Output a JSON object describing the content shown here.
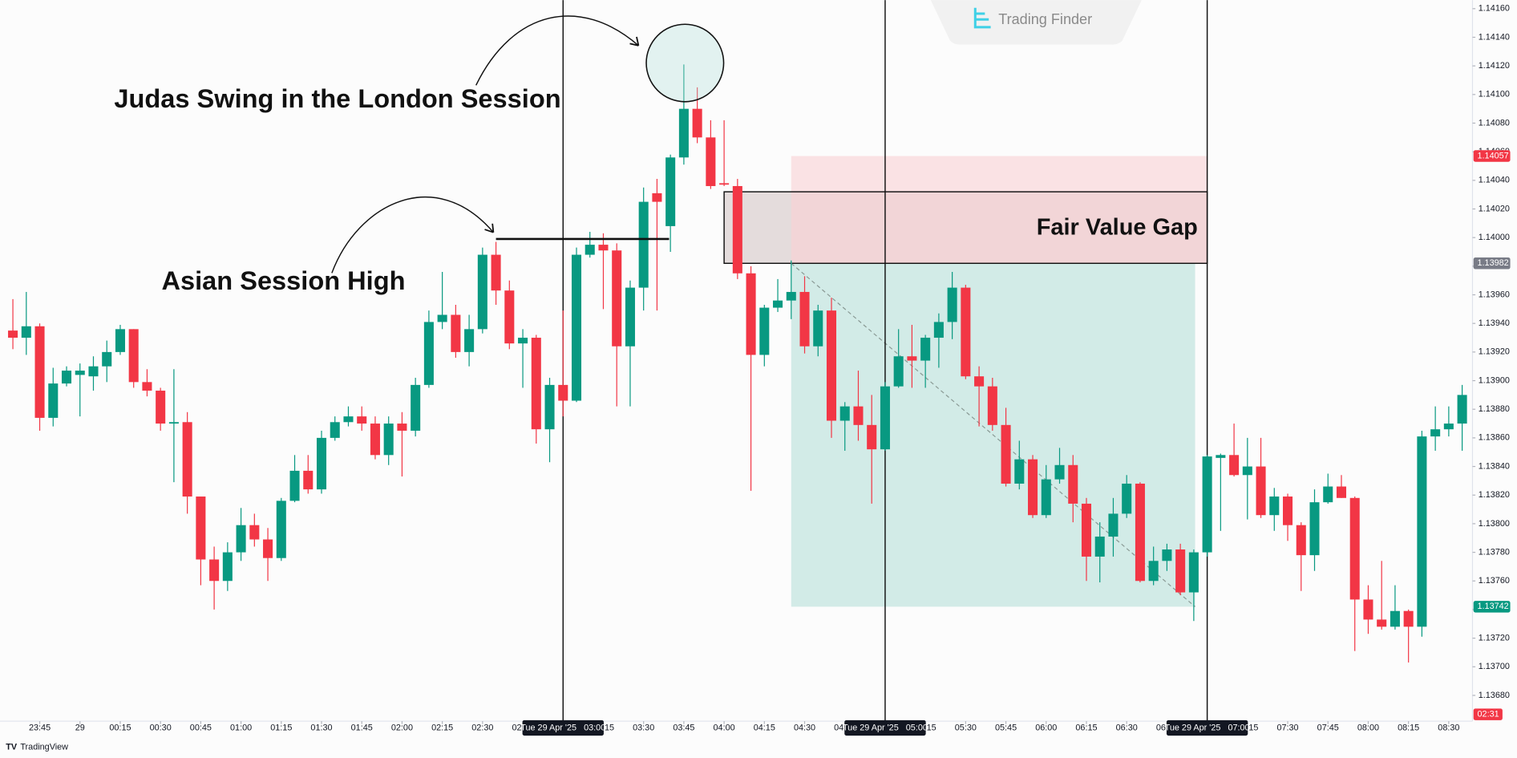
{
  "chart_data": {
    "type": "candlestick",
    "up_color": "#089981",
    "down_color": "#f23645",
    "open": [
      1.13935,
      1.1393,
      1.13938,
      1.13874,
      1.13898,
      1.13904,
      1.13903,
      1.1391,
      1.1392,
      1.13936,
      1.13899,
      1.13893,
      1.1387,
      1.13871,
      1.13819,
      1.13775,
      1.1376,
      1.1378,
      1.13799,
      1.13789,
      1.13776,
      1.13816,
      1.13837,
      1.13824,
      1.1386,
      1.13871,
      1.13875,
      1.1387,
      1.13848,
      1.1387,
      1.13865,
      1.13897,
      1.13941,
      1.13946,
      1.1392,
      1.13936,
      1.13988,
      1.13963,
      1.13926,
      1.1393,
      1.13866,
      1.13897,
      1.13886,
      1.13988,
      1.13995,
      1.13991,
      1.13924,
      1.13965,
      1.14031,
      1.14008,
      1.14056,
      1.1409,
      1.1407,
      1.14038,
      1.14036,
      1.13975,
      1.13918,
      1.13951,
      1.13956,
      1.13962,
      1.13924,
      1.13949,
      1.13872,
      1.13882,
      1.13869,
      1.13852,
      1.13896,
      1.13917,
      1.13914,
      1.1393,
      1.13941,
      1.13965,
      1.13903,
      1.13896,
      1.13869,
      1.13828,
      1.13845,
      1.13806,
      1.13831,
      1.13841,
      1.13814,
      1.13777,
      1.13791,
      1.13807,
      1.13828,
      1.1376,
      1.13774,
      1.13782,
      1.13752,
      1.1378,
      1.13846,
      1.13848,
      1.13834,
      1.1384,
      1.13806,
      1.13819,
      1.13799,
      1.13778,
      1.13815,
      1.13826,
      1.13818,
      1.13747,
      1.13733,
      1.13728,
      1.13739,
      1.13728,
      1.13861,
      1.13866,
      1.1387
    ],
    "high": [
      1.13957,
      1.13962,
      1.1394,
      1.13909,
      1.1391,
      1.13912,
      1.13917,
      1.13928,
      1.13939,
      1.13936,
      1.13908,
      1.13895,
      1.13908,
      1.13878,
      1.13819,
      1.13784,
      1.13787,
      1.13811,
      1.13807,
      1.13797,
      1.13818,
      1.13848,
      1.13848,
      1.13865,
      1.13875,
      1.13882,
      1.13882,
      1.13875,
      1.13875,
      1.13878,
      1.13902,
      1.13949,
      1.13976,
      1.13953,
      1.13946,
      1.13993,
      1.13997,
      1.1397,
      1.13936,
      1.13932,
      1.13902,
      1.13949,
      1.13993,
      1.14004,
      1.14003,
      1.13996,
      1.1397,
      1.14035,
      1.14041,
      1.14058,
      1.14121,
      1.14105,
      1.14082,
      1.14082,
      1.14041,
      1.1398,
      1.13953,
      1.13971,
      1.13984,
      1.13973,
      1.13953,
      1.13958,
      1.13885,
      1.13907,
      1.1389,
      1.13899,
      1.13936,
      1.13939,
      1.13932,
      1.13947,
      1.13976,
      1.13967,
      1.1391,
      1.13902,
      1.13881,
      1.13858,
      1.13848,
      1.13841,
      1.13853,
      1.13848,
      1.13818,
      1.13801,
      1.13818,
      1.13834,
      1.13829,
      1.13784,
      1.13786,
      1.13786,
      1.13782,
      1.13848,
      1.13849,
      1.1387,
      1.1386,
      1.1386,
      1.13825,
      1.13821,
      1.13801,
      1.13824,
      1.13835,
      1.13834,
      1.13819,
      1.13757,
      1.13774,
      1.13757,
      1.1374,
      1.13865,
      1.13882,
      1.13882,
      1.13897
    ],
    "low": [
      1.13922,
      1.13918,
      1.13865,
      1.13868,
      1.13896,
      1.13875,
      1.13893,
      1.13899,
      1.13918,
      1.13895,
      1.13889,
      1.13865,
      1.13829,
      1.13807,
      1.13757,
      1.1374,
      1.13753,
      1.13774,
      1.13784,
      1.1376,
      1.13774,
      1.13815,
      1.13821,
      1.13821,
      1.13858,
      1.13868,
      1.13865,
      1.13845,
      1.13841,
      1.13833,
      1.13861,
      1.13895,
      1.13936,
      1.13916,
      1.1391,
      1.13933,
      1.13953,
      1.13922,
      1.13895,
      1.13856,
      1.13843,
      1.13875,
      1.13885,
      1.13986,
      1.1395,
      1.13882,
      1.13882,
      1.13949,
      1.13949,
      1.1399,
      1.14051,
      1.14066,
      1.14034,
      1.14036,
      1.13971,
      1.13823,
      1.1391,
      1.13948,
      1.13943,
      1.13919,
      1.13917,
      1.1386,
      1.13851,
      1.13858,
      1.13814,
      1.13851,
      1.13895,
      1.13895,
      1.13895,
      1.13909,
      1.13929,
      1.13901,
      1.13868,
      1.13865,
      1.13826,
      1.13824,
      1.13804,
      1.13804,
      1.13828,
      1.13801,
      1.1376,
      1.13759,
      1.13777,
      1.13804,
      1.13759,
      1.13757,
      1.13767,
      1.1375,
      1.13732,
      1.13777,
      1.13795,
      1.13833,
      1.13803,
      1.13804,
      1.13795,
      1.13788,
      1.13753,
      1.13767,
      1.13814,
      1.13818,
      1.13711,
      1.13723,
      1.13726,
      1.13726,
      1.13703,
      1.13721,
      1.13851,
      1.13861,
      1.13851
    ],
    "close": [
      1.1393,
      1.13938,
      1.13874,
      1.13898,
      1.13907,
      1.13907,
      1.1391,
      1.1392,
      1.13936,
      1.13899,
      1.13893,
      1.1387,
      1.13871,
      1.13819,
      1.13775,
      1.1376,
      1.1378,
      1.13799,
      1.13789,
      1.13776,
      1.13816,
      1.13837,
      1.13824,
      1.1386,
      1.13871,
      1.13875,
      1.1387,
      1.13848,
      1.1387,
      1.13865,
      1.13897,
      1.13941,
      1.13946,
      1.1392,
      1.13936,
      1.13988,
      1.13963,
      1.13926,
      1.1393,
      1.13866,
      1.13897,
      1.13886,
      1.13988,
      1.13995,
      1.13991,
      1.13924,
      1.13965,
      1.14025,
      1.14025,
      1.14056,
      1.1409,
      1.1407,
      1.14036,
      1.14037,
      1.13975,
      1.13918,
      1.13951,
      1.13956,
      1.13962,
      1.13924,
      1.13949,
      1.13872,
      1.13882,
      1.13869,
      1.13852,
      1.13896,
      1.13917,
      1.13914,
      1.1393,
      1.13941,
      1.13965,
      1.13903,
      1.13896,
      1.13869,
      1.13828,
      1.13845,
      1.13806,
      1.13831,
      1.13841,
      1.13814,
      1.13777,
      1.13791,
      1.13807,
      1.13828,
      1.1376,
      1.13774,
      1.13782,
      1.13752,
      1.1378,
      1.13847,
      1.13848,
      1.13834,
      1.1384,
      1.13806,
      1.13819,
      1.13799,
      1.13778,
      1.13815,
      1.13826,
      1.13818,
      1.13747,
      1.13733,
      1.13728,
      1.13739,
      1.13728,
      1.13861,
      1.13866,
      1.1387,
      1.1389
    ],
    "xlim": [
      -0.96,
      108.77
    ],
    "ylim": [
      1.13662,
      1.14166
    ],
    "yticks": [
      {
        "value": 1.1368,
        "label": "1.13680"
      },
      {
        "value": 1.137,
        "label": "1.13700"
      },
      {
        "value": 1.1372,
        "label": "1.13720"
      },
      {
        "value": 1.1374,
        "label": "1.13740"
      },
      {
        "value": 1.1376,
        "label": "1.13760"
      },
      {
        "value": 1.1378,
        "label": "1.13780"
      },
      {
        "value": 1.138,
        "label": "1.13800"
      },
      {
        "value": 1.1382,
        "label": "1.13820"
      },
      {
        "value": 1.1384,
        "label": "1.13840"
      },
      {
        "value": 1.1386,
        "label": "1.13860"
      },
      {
        "value": 1.1388,
        "label": "1.13880"
      },
      {
        "value": 1.139,
        "label": "1.13900"
      },
      {
        "value": 1.1392,
        "label": "1.13920"
      },
      {
        "value": 1.1394,
        "label": "1.13940"
      },
      {
        "value": 1.1396,
        "label": "1.13960"
      },
      {
        "value": 1.1398,
        "label": "1.13980"
      },
      {
        "value": 1.14,
        "label": "1.14000"
      },
      {
        "value": 1.1402,
        "label": "1.14020"
      },
      {
        "value": 1.1404,
        "label": "1.14040"
      },
      {
        "value": 1.1406,
        "label": "1.14060"
      },
      {
        "value": 1.1408,
        "label": "1.14080"
      },
      {
        "value": 1.141,
        "label": "1.14100"
      },
      {
        "value": 1.1412,
        "label": "1.14120"
      },
      {
        "value": 1.1414,
        "label": "1.14140"
      },
      {
        "value": 1.1416,
        "label": "1.14160"
      }
    ],
    "xticks": [
      {
        "value": 2,
        "label": "23:45"
      },
      {
        "value": 5,
        "label": "29"
      },
      {
        "value": 8,
        "label": "00:15"
      },
      {
        "value": 11,
        "label": "00:30"
      },
      {
        "value": 14,
        "label": "00:45"
      },
      {
        "value": 17,
        "label": "01:00"
      },
      {
        "value": 20,
        "label": "01:15"
      },
      {
        "value": 23,
        "label": "01:30"
      },
      {
        "value": 26,
        "label": "01:45"
      },
      {
        "value": 29,
        "label": "02:00"
      },
      {
        "value": 32,
        "label": "02:15"
      },
      {
        "value": 35,
        "label": "02:30"
      },
      {
        "value": 38,
        "label": "02:45"
      },
      {
        "value": 44,
        "label": "03:15"
      },
      {
        "value": 47,
        "label": "03:30"
      },
      {
        "value": 50,
        "label": "03:45"
      },
      {
        "value": 53,
        "label": "04:00"
      },
      {
        "value": 56,
        "label": "04:15"
      },
      {
        "value": 59,
        "label": "04:30"
      },
      {
        "value": 62,
        "label": "04:45"
      },
      {
        "value": 68,
        "label": "05:15"
      },
      {
        "value": 71,
        "label": "05:30"
      },
      {
        "value": 74,
        "label": "05:45"
      },
      {
        "value": 77,
        "label": "06:00"
      },
      {
        "value": 80,
        "label": "06:15"
      },
      {
        "value": 83,
        "label": "06:30"
      },
      {
        "value": 86,
        "label": "06:45"
      },
      {
        "value": 92,
        "label": "07:15"
      },
      {
        "value": 95,
        "label": "07:30"
      },
      {
        "value": 98,
        "label": "07:45"
      },
      {
        "value": 101,
        "label": "08:00"
      },
      {
        "value": 104,
        "label": "08:15"
      },
      {
        "value": 107,
        "label": "08:30"
      }
    ],
    "session_markers": [
      {
        "value": 41,
        "label": "Tue 29 Apr '25   03:00"
      },
      {
        "value": 65,
        "label": "Tue 29 Apr '25   05:00"
      },
      {
        "value": 89,
        "label": "Tue 29 Apr '25   07:00"
      }
    ],
    "fvg": {
      "label": "Fair Value Gap",
      "top": 1.14032,
      "bottom": 1.13982
    },
    "asian_high": {
      "label": "Asian Session High",
      "price": 1.13999
    },
    "judas_swing": {
      "label": "Judas Swing in the London Session"
    },
    "position": {
      "stop": 1.14057,
      "entry": 1.13982,
      "target": 1.13742
    },
    "countdown": "02:31",
    "watermark": "Trading Finder",
    "brand": "TradingView"
  }
}
